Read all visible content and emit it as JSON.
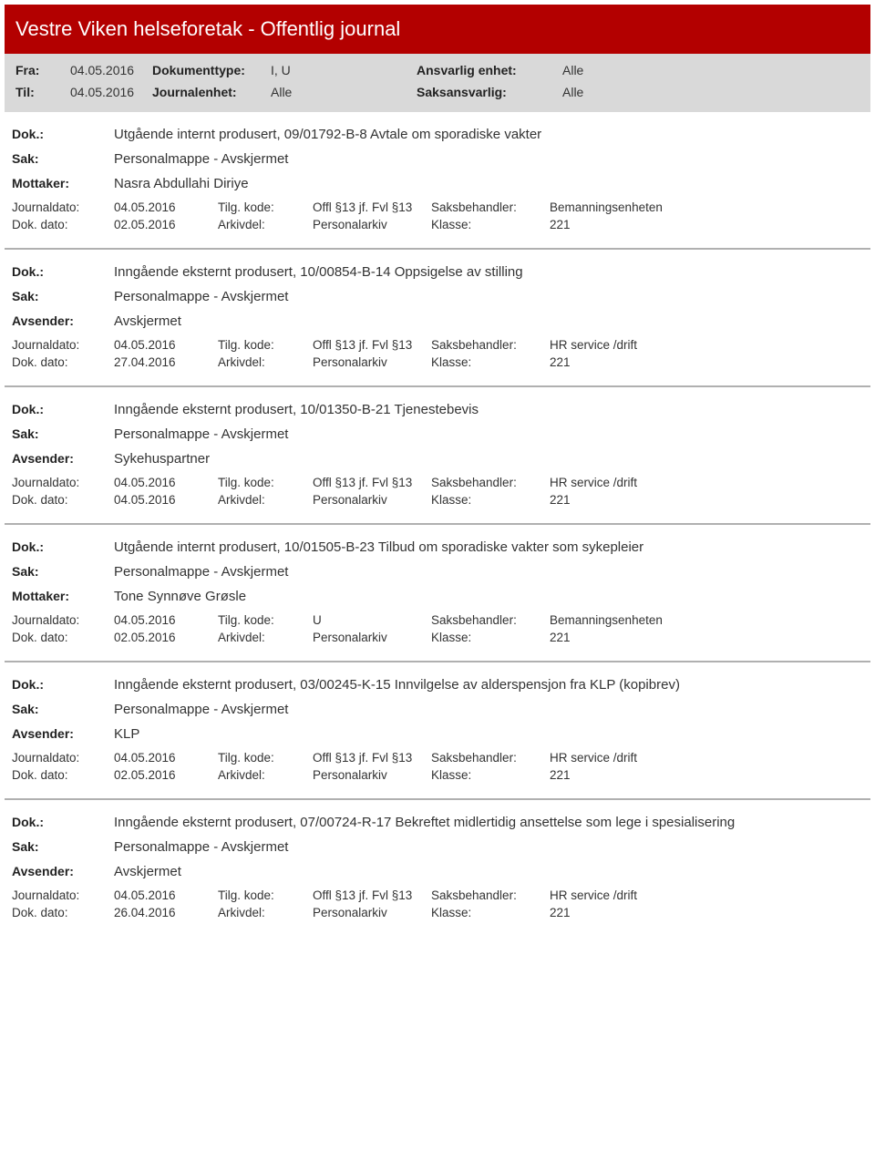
{
  "header": {
    "title": "Vestre Viken helseforetak - Offentlig journal"
  },
  "filters": {
    "fra_label": "Fra:",
    "fra_value": "04.05.2016",
    "til_label": "Til:",
    "til_value": "04.05.2016",
    "dokumenttype_label": "Dokumenttype:",
    "dokumenttype_value": "I, U",
    "journalenhet_label": "Journalenhet:",
    "journalenhet_value": "Alle",
    "ansvarlig_label": "Ansvarlig enhet:",
    "ansvarlig_value": "Alle",
    "saksansvarlig_label": "Saksansvarlig:",
    "saksansvarlig_value": "Alle"
  },
  "labels": {
    "dok": "Dok.:",
    "sak": "Sak:",
    "mottaker": "Mottaker:",
    "avsender": "Avsender:",
    "journaldato": "Journaldato:",
    "dokdato": "Dok. dato:",
    "tilgkode": "Tilg. kode:",
    "arkivdel": "Arkivdel:",
    "saksbehandler": "Saksbehandler:",
    "klasse": "Klasse:"
  },
  "entries": [
    {
      "dok": "Utgående internt produsert, 09/01792-B-8 Avtale om sporadiske vakter",
      "sak": "Personalmappe - Avskjermet",
      "party_label": "Mottaker:",
      "party": "Nasra Abdullahi Diriye",
      "journaldato": "04.05.2016",
      "dokdato": "02.05.2016",
      "tilgkode": "Offl §13 jf. Fvl §13",
      "arkivdel": "Personalarkiv",
      "saksbehandler": "Bemanningsenheten",
      "klasse": "221"
    },
    {
      "dok": "Inngående eksternt produsert, 10/00854-B-14 Oppsigelse av stilling",
      "sak": "Personalmappe - Avskjermet",
      "party_label": "Avsender:",
      "party": "Avskjermet",
      "journaldato": "04.05.2016",
      "dokdato": "27.04.2016",
      "tilgkode": "Offl §13 jf. Fvl §13",
      "arkivdel": "Personalarkiv",
      "saksbehandler": "HR service /drift",
      "klasse": "221"
    },
    {
      "dok": "Inngående eksternt produsert, 10/01350-B-21 Tjenestebevis",
      "sak": "Personalmappe - Avskjermet",
      "party_label": "Avsender:",
      "party": "Sykehuspartner",
      "journaldato": "04.05.2016",
      "dokdato": "04.05.2016",
      "tilgkode": "Offl §13 jf. Fvl §13",
      "arkivdel": "Personalarkiv",
      "saksbehandler": "HR service /drift",
      "klasse": "221"
    },
    {
      "dok": "Utgående internt produsert, 10/01505-B-23 Tilbud om sporadiske vakter som sykepleier",
      "sak": "Personalmappe - Avskjermet",
      "party_label": "Mottaker:",
      "party": "Tone Synnøve Grøsle",
      "journaldato": "04.05.2016",
      "dokdato": "02.05.2016",
      "tilgkode": "U",
      "arkivdel": "Personalarkiv",
      "saksbehandler": "Bemanningsenheten",
      "klasse": "221"
    },
    {
      "dok": "Inngående eksternt produsert, 03/00245-K-15 Innvilgelse av alderspensjon fra KLP (kopibrev)",
      "sak": "Personalmappe - Avskjermet",
      "party_label": "Avsender:",
      "party": "KLP",
      "journaldato": "04.05.2016",
      "dokdato": "02.05.2016",
      "tilgkode": "Offl §13 jf. Fvl §13",
      "arkivdel": "Personalarkiv",
      "saksbehandler": "HR service /drift",
      "klasse": "221"
    },
    {
      "dok": "Inngående eksternt produsert, 07/00724-R-17 Bekreftet midlertidig ansettelse som lege i spesialisering",
      "sak": "Personalmappe - Avskjermet",
      "party_label": "Avsender:",
      "party": "Avskjermet",
      "journaldato": "04.05.2016",
      "dokdato": "26.04.2016",
      "tilgkode": "Offl §13 jf. Fvl §13",
      "arkivdel": "Personalarkiv",
      "saksbehandler": "HR service /drift",
      "klasse": "221"
    }
  ]
}
